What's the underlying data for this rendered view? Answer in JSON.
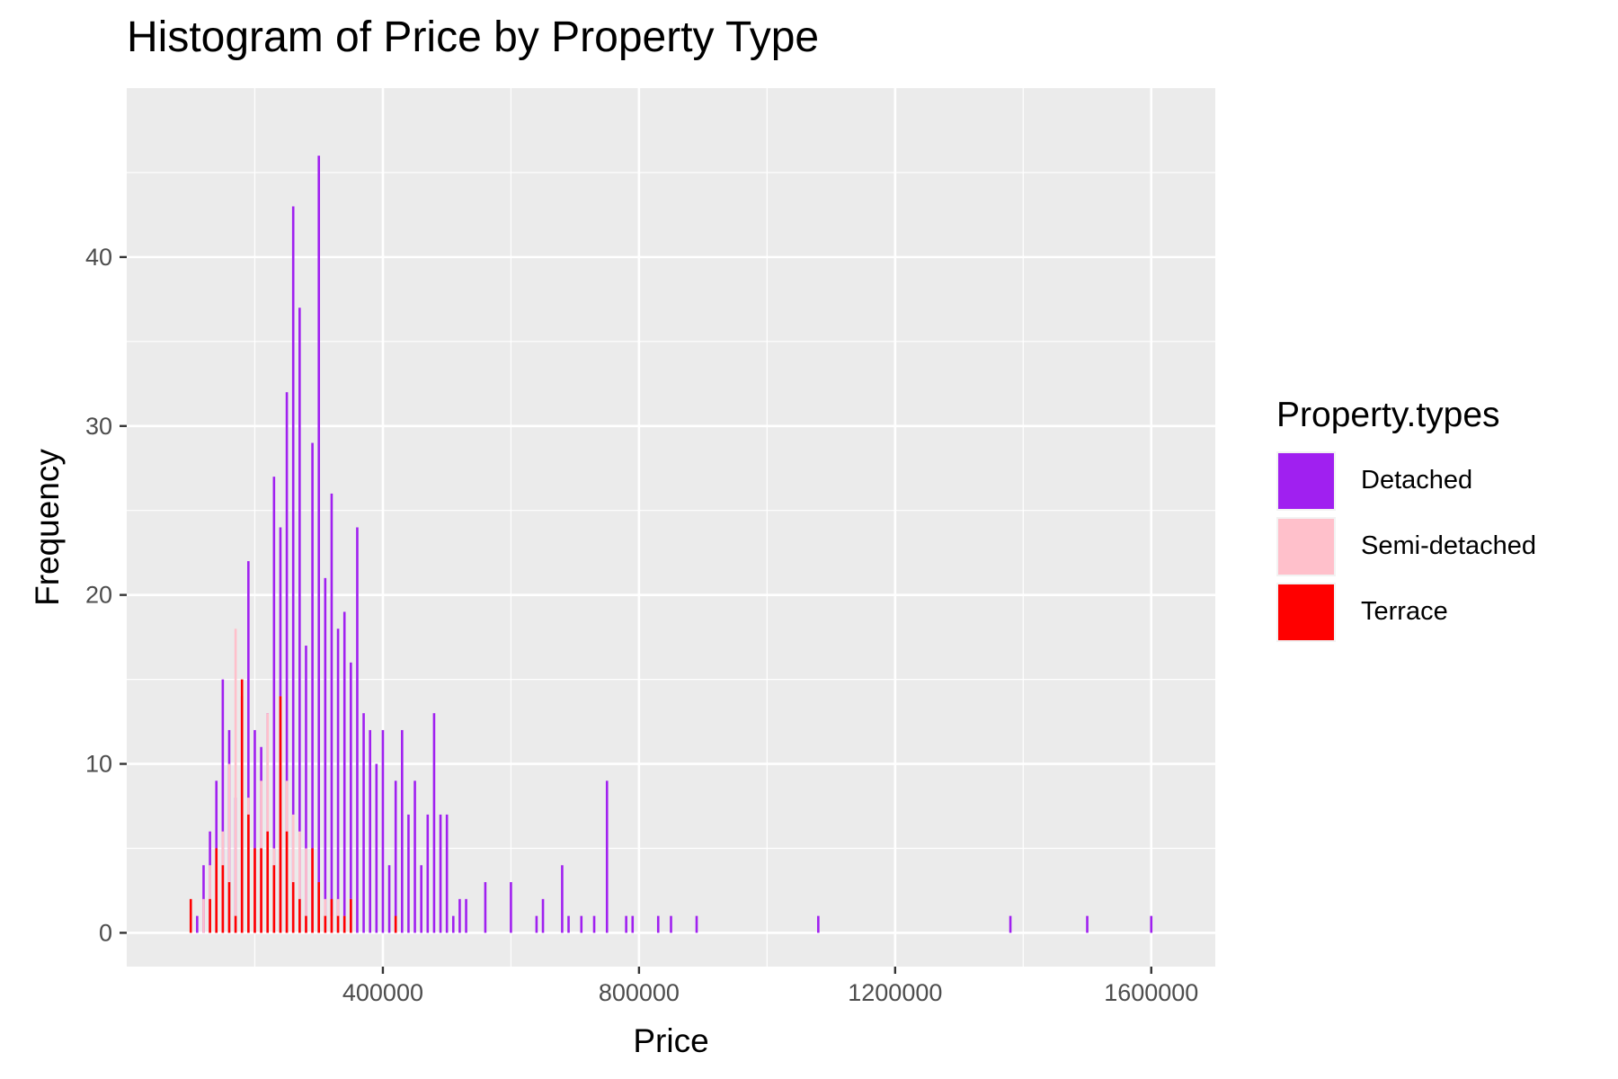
{
  "chart_data": {
    "type": "bar",
    "title": "Histogram of Price by Property Type",
    "xlabel": "Price",
    "ylabel": "Frequency",
    "xlim": [
      0,
      1700000
    ],
    "ylim": [
      -2,
      50
    ],
    "x_ticks": [
      400000,
      800000,
      1200000,
      1600000
    ],
    "x_tick_labels": [
      "400000",
      "800000",
      "1200000",
      "1600000"
    ],
    "y_ticks": [
      0,
      10,
      20,
      30,
      40
    ],
    "y_tick_labels": [
      "0",
      "10",
      "20",
      "30",
      "40"
    ],
    "grid": true,
    "legend": {
      "title": "Property.types",
      "placement": "right"
    },
    "series": [
      {
        "name": "Detached",
        "color": "#A020F0",
        "points": [
          {
            "x": 110000,
            "y": 1
          },
          {
            "x": 120000,
            "y": 4
          },
          {
            "x": 130000,
            "y": 6
          },
          {
            "x": 140000,
            "y": 9
          },
          {
            "x": 150000,
            "y": 15
          },
          {
            "x": 160000,
            "y": 12
          },
          {
            "x": 170000,
            "y": 8
          },
          {
            "x": 180000,
            "y": 14
          },
          {
            "x": 190000,
            "y": 22
          },
          {
            "x": 200000,
            "y": 12
          },
          {
            "x": 210000,
            "y": 11
          },
          {
            "x": 220000,
            "y": 13
          },
          {
            "x": 230000,
            "y": 27
          },
          {
            "x": 240000,
            "y": 24
          },
          {
            "x": 250000,
            "y": 32
          },
          {
            "x": 260000,
            "y": 43
          },
          {
            "x": 270000,
            "y": 37
          },
          {
            "x": 280000,
            "y": 17
          },
          {
            "x": 290000,
            "y": 29
          },
          {
            "x": 300000,
            "y": 46
          },
          {
            "x": 310000,
            "y": 21
          },
          {
            "x": 320000,
            "y": 26
          },
          {
            "x": 330000,
            "y": 18
          },
          {
            "x": 340000,
            "y": 19
          },
          {
            "x": 350000,
            "y": 16
          },
          {
            "x": 360000,
            "y": 24
          },
          {
            "x": 370000,
            "y": 13
          },
          {
            "x": 380000,
            "y": 12
          },
          {
            "x": 390000,
            "y": 10
          },
          {
            "x": 400000,
            "y": 12
          },
          {
            "x": 410000,
            "y": 4
          },
          {
            "x": 420000,
            "y": 9
          },
          {
            "x": 430000,
            "y": 12
          },
          {
            "x": 440000,
            "y": 7
          },
          {
            "x": 450000,
            "y": 9
          },
          {
            "x": 460000,
            "y": 4
          },
          {
            "x": 470000,
            "y": 7
          },
          {
            "x": 480000,
            "y": 13
          },
          {
            "x": 490000,
            "y": 7
          },
          {
            "x": 500000,
            "y": 7
          },
          {
            "x": 510000,
            "y": 1
          },
          {
            "x": 520000,
            "y": 2
          },
          {
            "x": 530000,
            "y": 2
          },
          {
            "x": 560000,
            "y": 3
          },
          {
            "x": 600000,
            "y": 3
          },
          {
            "x": 640000,
            "y": 1
          },
          {
            "x": 650000,
            "y": 2
          },
          {
            "x": 680000,
            "y": 4
          },
          {
            "x": 690000,
            "y": 1
          },
          {
            "x": 710000,
            "y": 1
          },
          {
            "x": 730000,
            "y": 1
          },
          {
            "x": 750000,
            "y": 9
          },
          {
            "x": 780000,
            "y": 1
          },
          {
            "x": 790000,
            "y": 1
          },
          {
            "x": 830000,
            "y": 1
          },
          {
            "x": 850000,
            "y": 1
          },
          {
            "x": 890000,
            "y": 1
          },
          {
            "x": 1080000,
            "y": 1
          },
          {
            "x": 1380000,
            "y": 1
          },
          {
            "x": 1500000,
            "y": 1
          },
          {
            "x": 1600000,
            "y": 1
          }
        ]
      },
      {
        "name": "Semi-detached",
        "color": "#FFC0CB",
        "points": [
          {
            "x": 120000,
            "y": 2
          },
          {
            "x": 130000,
            "y": 4
          },
          {
            "x": 140000,
            "y": 3
          },
          {
            "x": 150000,
            "y": 6
          },
          {
            "x": 160000,
            "y": 10
          },
          {
            "x": 170000,
            "y": 18
          },
          {
            "x": 180000,
            "y": 9
          },
          {
            "x": 190000,
            "y": 8
          },
          {
            "x": 200000,
            "y": 5
          },
          {
            "x": 210000,
            "y": 9
          },
          {
            "x": 220000,
            "y": 13
          },
          {
            "x": 230000,
            "y": 5
          },
          {
            "x": 240000,
            "y": 14
          },
          {
            "x": 250000,
            "y": 9
          },
          {
            "x": 260000,
            "y": 7
          },
          {
            "x": 270000,
            "y": 6
          },
          {
            "x": 280000,
            "y": 5
          },
          {
            "x": 290000,
            "y": 5
          },
          {
            "x": 300000,
            "y": 2
          },
          {
            "x": 310000,
            "y": 2
          },
          {
            "x": 320000,
            "y": 1
          },
          {
            "x": 330000,
            "y": 2
          },
          {
            "x": 340000,
            "y": 1
          },
          {
            "x": 350000,
            "y": 2
          }
        ]
      },
      {
        "name": "Terrace",
        "color": "#FF0000",
        "points": [
          {
            "x": 100000,
            "y": 2
          },
          {
            "x": 130000,
            "y": 2
          },
          {
            "x": 140000,
            "y": 5
          },
          {
            "x": 150000,
            "y": 4
          },
          {
            "x": 160000,
            "y": 3
          },
          {
            "x": 170000,
            "y": 1
          },
          {
            "x": 180000,
            "y": 15
          },
          {
            "x": 190000,
            "y": 7
          },
          {
            "x": 200000,
            "y": 5
          },
          {
            "x": 210000,
            "y": 5
          },
          {
            "x": 220000,
            "y": 6
          },
          {
            "x": 230000,
            "y": 4
          },
          {
            "x": 240000,
            "y": 14
          },
          {
            "x": 250000,
            "y": 6
          },
          {
            "x": 260000,
            "y": 3
          },
          {
            "x": 270000,
            "y": 2
          },
          {
            "x": 280000,
            "y": 1
          },
          {
            "x": 290000,
            "y": 5
          },
          {
            "x": 300000,
            "y": 3
          },
          {
            "x": 310000,
            "y": 1
          },
          {
            "x": 320000,
            "y": 2
          },
          {
            "x": 330000,
            "y": 1
          },
          {
            "x": 340000,
            "y": 1
          },
          {
            "x": 350000,
            "y": 2
          },
          {
            "x": 420000,
            "y": 1
          }
        ]
      }
    ]
  }
}
